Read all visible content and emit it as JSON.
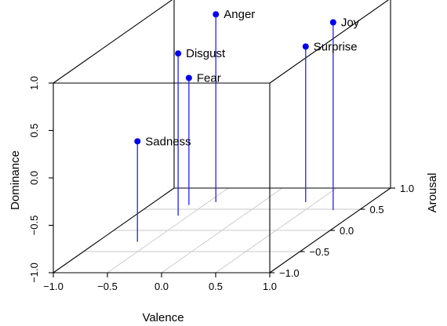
{
  "chart_data": {
    "type": "scatter",
    "subtype": "3d-scatter-with-drop-lines",
    "title": "",
    "xlabel": "Valence",
    "ylabel": "Arousal",
    "zlabel": "Dominance",
    "xlim": [
      -1.0,
      1.0
    ],
    "ylim": [
      -1.0,
      1.0
    ],
    "zlim": [
      -1.0,
      1.0
    ],
    "xticks": [
      "−1.0",
      "−0.5",
      "0.0",
      "0.5",
      "1.0"
    ],
    "yticks": [
      "−1.0",
      "−0.5",
      "0.0",
      "0.5",
      "1.0"
    ],
    "zticks": [
      "−1.0",
      "−0.5",
      "0.0",
      "0.5",
      "1.0"
    ],
    "xtick_values": [
      -1.0,
      -0.5,
      0.0,
      0.5,
      1.0
    ],
    "ytick_values": [
      -1.0,
      -0.5,
      0.0,
      0.5,
      1.0
    ],
    "ztick_values": [
      -1.0,
      -0.5,
      0.0,
      0.5,
      1.0
    ],
    "grid": true,
    "colors": {
      "points": "#0000ee",
      "stems": "#2222ee",
      "grid": "#c8c8c8",
      "box": "#000000"
    },
    "points": [
      {
        "label": "Anger",
        "x": -0.43,
        "y": 0.67,
        "z": 0.98
      },
      {
        "label": "Disgust",
        "x": -0.6,
        "y": 0.35,
        "z": 0.71
      },
      {
        "label": "Fear",
        "x": -0.64,
        "y": 0.6,
        "z": 0.34
      },
      {
        "label": "Sadness",
        "x": -0.63,
        "y": -0.27,
        "z": 0.06
      },
      {
        "label": "Surprise",
        "x": 0.4,
        "y": 0.67,
        "z": 0.64
      },
      {
        "label": "Joy",
        "x": 0.76,
        "y": 0.48,
        "z": 0.98
      }
    ]
  }
}
